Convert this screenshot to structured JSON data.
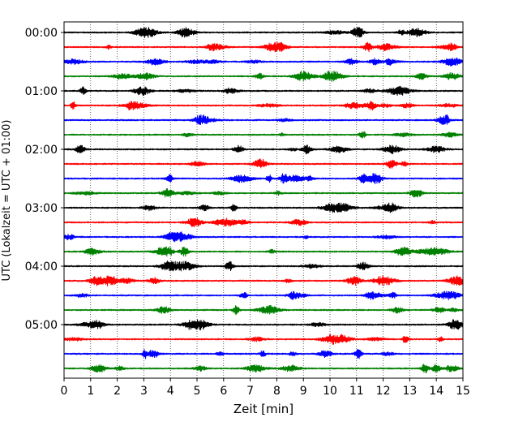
{
  "chart_data": {
    "type": "line",
    "title": "",
    "xlabel": "Zeit  [min]",
    "ylabel": "UTC (Lokalzeit = UTC + 01:00)",
    "xlim": [
      0,
      15
    ],
    "x_ticks": [
      "0",
      "1",
      "2",
      "3",
      "4",
      "5",
      "6",
      "7",
      "8",
      "9",
      "10",
      "11",
      "12",
      "13",
      "14",
      "15"
    ],
    "vertical_gridlines": "dotted, every minute",
    "row_minutes": 15,
    "rows": 24,
    "y_tick_labels": [
      {
        "row": 0,
        "label": "00:00"
      },
      {
        "row": 4,
        "label": "01:00"
      },
      {
        "row": 8,
        "label": "02:00"
      },
      {
        "row": 12,
        "label": "03:00"
      },
      {
        "row": 16,
        "label": "04:00"
      },
      {
        "row": 20,
        "label": "05:00"
      }
    ],
    "trace_colors": [
      "#000000",
      "#ff0000",
      "#0000ff",
      "#008000"
    ],
    "series": [
      {
        "row": 0,
        "start_utc": "00:00",
        "color": "#000000"
      },
      {
        "row": 1,
        "start_utc": "00:15",
        "color": "#ff0000"
      },
      {
        "row": 2,
        "start_utc": "00:30",
        "color": "#0000ff"
      },
      {
        "row": 3,
        "start_utc": "00:45",
        "color": "#008000"
      },
      {
        "row": 4,
        "start_utc": "01:00",
        "color": "#000000"
      },
      {
        "row": 5,
        "start_utc": "01:15",
        "color": "#ff0000"
      },
      {
        "row": 6,
        "start_utc": "01:30",
        "color": "#0000ff"
      },
      {
        "row": 7,
        "start_utc": "01:45",
        "color": "#008000"
      },
      {
        "row": 8,
        "start_utc": "02:00",
        "color": "#000000"
      },
      {
        "row": 9,
        "start_utc": "02:15",
        "color": "#ff0000"
      },
      {
        "row": 10,
        "start_utc": "02:30",
        "color": "#0000ff"
      },
      {
        "row": 11,
        "start_utc": "02:45",
        "color": "#008000"
      },
      {
        "row": 12,
        "start_utc": "03:00",
        "color": "#000000"
      },
      {
        "row": 13,
        "start_utc": "03:15",
        "color": "#ff0000"
      },
      {
        "row": 14,
        "start_utc": "03:30",
        "color": "#0000ff"
      },
      {
        "row": 15,
        "start_utc": "03:45",
        "color": "#008000"
      },
      {
        "row": 16,
        "start_utc": "04:00",
        "color": "#000000"
      },
      {
        "row": 17,
        "start_utc": "04:15",
        "color": "#ff0000"
      },
      {
        "row": 18,
        "start_utc": "04:30",
        "color": "#0000ff"
      },
      {
        "row": 19,
        "start_utc": "04:45",
        "color": "#008000"
      },
      {
        "row": 20,
        "start_utc": "05:00",
        "color": "#000000"
      },
      {
        "row": 21,
        "start_utc": "05:15",
        "color": "#ff0000"
      },
      {
        "row": 22,
        "start_utc": "05:30",
        "color": "#0000ff"
      },
      {
        "row": 23,
        "start_utc": "05:45",
        "color": "#008000"
      }
    ]
  }
}
